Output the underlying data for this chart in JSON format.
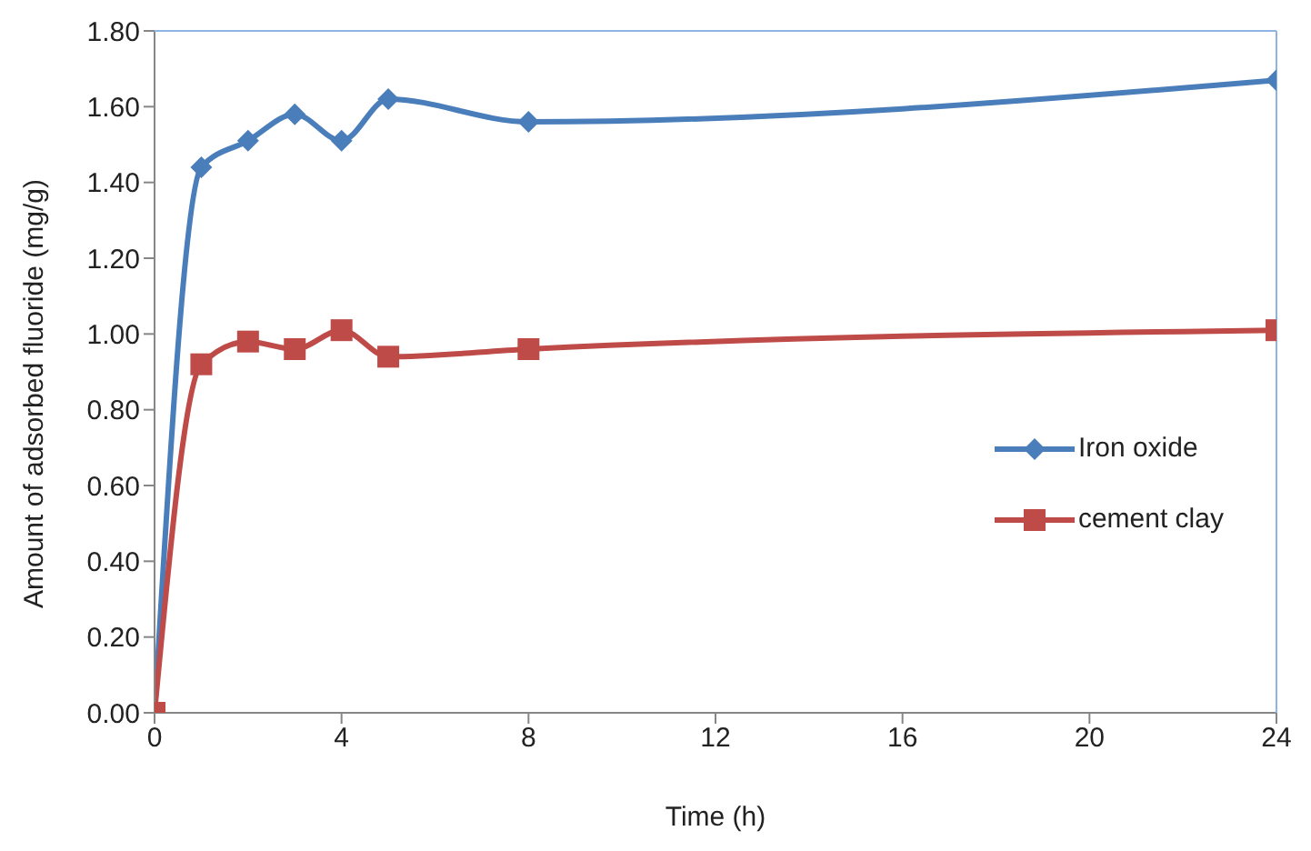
{
  "chart_data": {
    "type": "line",
    "xlabel": "Time (h)",
    "ylabel": "Amount of adsorbed fluoride (mg/g)",
    "x": [
      0,
      1,
      2,
      3,
      4,
      5,
      8,
      24
    ],
    "series": [
      {
        "name": "Iron oxide",
        "color": "#4a7ebb",
        "marker": "diamond",
        "values": [
          0,
          1.44,
          1.51,
          1.58,
          1.51,
          1.62,
          1.56,
          1.67
        ]
      },
      {
        "name": "cement clay",
        "color": "#be4b48",
        "marker": "square",
        "values": [
          0,
          0.92,
          0.98,
          0.96,
          1.01,
          0.94,
          0.96,
          1.01
        ]
      }
    ],
    "xlim": [
      0,
      24
    ],
    "xticks": [
      0,
      4,
      8,
      12,
      16,
      20,
      24
    ],
    "ylim": [
      0,
      1.8
    ],
    "yticks": [
      {
        "value": 0,
        "label": "0.00"
      },
      {
        "value": 0.2,
        "label": "0.20"
      },
      {
        "value": 0.4,
        "label": "0.40"
      },
      {
        "value": 0.6,
        "label": "0.60"
      },
      {
        "value": 0.8,
        "label": "0.80"
      },
      {
        "value": 1,
        "label": "1.00"
      },
      {
        "value": 1.2,
        "label": "1.20"
      },
      {
        "value": 1.4,
        "label": "1.40"
      },
      {
        "value": 1.6,
        "label": "1.60"
      },
      {
        "value": 1.8,
        "label": "1.80"
      }
    ],
    "grid": false,
    "legend": "right",
    "line_style": "solid"
  }
}
